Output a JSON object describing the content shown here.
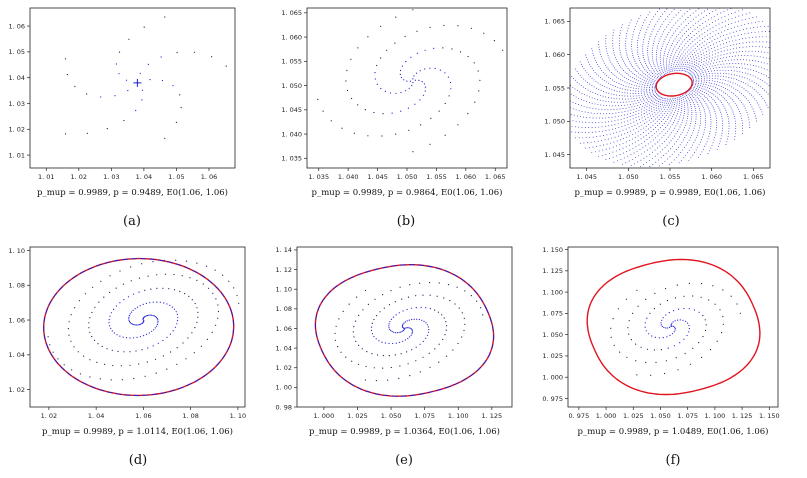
{
  "colors": {
    "blue": "#1f1fd6",
    "red": "#e0141e",
    "dots": "#1a1a55",
    "axis": "#222222"
  },
  "chart_data": [
    {
      "id": "a",
      "type": "scatter",
      "caption": "(a)",
      "xlabel": "p_mup = 0.9989,  p = 0.9489,  E0(1.06, 1.06)",
      "xlim": [
        1.005,
        1.068
      ],
      "ylim": [
        1.005,
        1.067
      ],
      "xticks": [
        1.01,
        1.02,
        1.03,
        1.04,
        1.05,
        1.06
      ],
      "yticks": [
        1.01,
        1.02,
        1.03,
        1.04,
        1.05,
        1.06
      ],
      "tick_labels_x": [
        "1. 01",
        "1. 02",
        "1. 03",
        "1. 04",
        "1. 05",
        "1. 06"
      ],
      "tick_labels_y": [
        "1. 01",
        "1. 02",
        "1. 03",
        "1. 04",
        "1. 05",
        "1. 06"
      ],
      "equilibrium": [
        1.038,
        1.038
      ],
      "dynamics": {
        "kind": "star",
        "rmax": 0.026,
        "arms": 5,
        "turns": 0.25,
        "points": 8
      },
      "limit_cycle": null
    },
    {
      "id": "b",
      "type": "scatter",
      "caption": "(b)",
      "xlabel": "p_mup = 0.9989,  p = 0.9864,  E0(1.06, 1.06)",
      "xlim": [
        1.033,
        1.067
      ],
      "ylim": [
        1.033,
        1.066
      ],
      "xticks": [
        1.035,
        1.04,
        1.045,
        1.05,
        1.055,
        1.06,
        1.065
      ],
      "yticks": [
        1.035,
        1.04,
        1.045,
        1.05,
        1.055,
        1.06,
        1.065
      ],
      "tick_labels_x": [
        "1. 035",
        "1. 040",
        "1. 045",
        "1. 050",
        "1. 055",
        "1. 060",
        "1. 065"
      ],
      "tick_labels_y": [
        "1. 035",
        "1. 040",
        "1. 045",
        "1. 050",
        "1. 055",
        "1. 060",
        "1. 065"
      ],
      "equilibrium": [
        1.051,
        1.051
      ],
      "dynamics": {
        "kind": "spiral",
        "rmax": 0.015,
        "arms": 4,
        "turns": 0.75,
        "points": 26
      },
      "limit_cycle": null
    },
    {
      "id": "c",
      "type": "scatter",
      "caption": "(c)",
      "xlabel": "p_mup = 0.9989,  p = 0.9989,  E0(1.06, 1.06)",
      "xlim": [
        1.043,
        1.067
      ],
      "ylim": [
        1.043,
        1.067
      ],
      "xticks": [
        1.045,
        1.05,
        1.055,
        1.06,
        1.065
      ],
      "yticks": [
        1.045,
        1.05,
        1.055,
        1.06,
        1.065
      ],
      "tick_labels_x": [
        "1. 045",
        "1. 050",
        "1. 055",
        "1. 060",
        "1. 065"
      ],
      "tick_labels_y": [
        "1. 045",
        "1. 050",
        "1. 055",
        "1. 060",
        "1. 065"
      ],
      "equilibrium": [
        1.0555,
        1.0555
      ],
      "dynamics": {
        "kind": "web",
        "rmax": 0.0125,
        "arms": 70,
        "turns": 0.12,
        "points": 34
      },
      "limit_cycle": {
        "cx": 1.0555,
        "cy": 1.0555,
        "rx": 0.0024,
        "ry": 0.0018,
        "tilt": 0.5,
        "color": "red"
      }
    },
    {
      "id": "d",
      "type": "scatter",
      "caption": "(d)",
      "xlabel": "p_mup = 0.9989,  p = 1.0114,  E0(1.06, 1.06)",
      "xlim": [
        1.012,
        1.103
      ],
      "ylim": [
        1.01,
        1.102
      ],
      "xticks": [
        1.02,
        1.04,
        1.06,
        1.08,
        1.1
      ],
      "yticks": [
        1.02,
        1.04,
        1.06,
        1.08,
        1.1
      ],
      "tick_labels_x": [
        "1. 02",
        "1. 04",
        "1. 06",
        "1. 08",
        "1. 10"
      ],
      "tick_labels_y": [
        "1. 02",
        "1. 04",
        "1. 06",
        "1. 08",
        "1. 10"
      ],
      "equilibrium": [
        1.06,
        1.06
      ],
      "dynamics": {
        "kind": "spiral",
        "rmax": 0.038,
        "arms": 2,
        "turns": 2.3,
        "points": 110
      },
      "limit_cycle": {
        "cx": 1.058,
        "cy": 1.056,
        "rx": 0.042,
        "ry": 0.041,
        "tilt": 0.35,
        "color": "red",
        "overlay": "blue"
      }
    },
    {
      "id": "e",
      "type": "scatter",
      "caption": "(e)",
      "xlabel": "p_mup = 0.9989,  p = 1.0364,  E0(1.06, 1.06)",
      "xlim": [
        0.98,
        1.14
      ],
      "ylim": [
        0.98,
        1.143
      ],
      "xticks": [
        1.0,
        1.025,
        1.05,
        1.075,
        1.1,
        1.125
      ],
      "yticks": [
        0.98,
        1.0,
        1.02,
        1.04,
        1.06,
        1.08,
        1.1,
        1.12,
        1.14
      ],
      "tick_labels_x": [
        "1. 000",
        "1. 025",
        "1. 050",
        "1. 075",
        "1. 100",
        "1. 125"
      ],
      "tick_labels_y": [
        "0. 98",
        "1. 00",
        "1. 02",
        "1. 04",
        "1. 06",
        "1. 08",
        "1. 10",
        "1. 12",
        "1. 14"
      ],
      "equilibrium": [
        1.06,
        1.06
      ],
      "dynamics": {
        "kind": "spiral",
        "rmax": 0.055,
        "arms": 3,
        "turns": 1.4,
        "points": 60
      },
      "limit_cycle": {
        "cx": 1.06,
        "cy": 1.058,
        "rx": 0.072,
        "ry": 0.073,
        "tilt": 0.55,
        "color": "red",
        "overlay": "blue",
        "squareness": 0.12
      }
    },
    {
      "id": "f",
      "type": "scatter",
      "caption": "(f)",
      "xlabel": "p_mup = 0.9989,  p = 1.0489,  E0(1.06, 1.06)",
      "xlim": [
        0.965,
        1.158
      ],
      "ylim": [
        0.965,
        1.153
      ],
      "xticks": [
        0.975,
        1.0,
        1.025,
        1.05,
        1.075,
        1.1,
        1.125,
        1.15
      ],
      "yticks": [
        0.975,
        1.0,
        1.025,
        1.05,
        1.075,
        1.1,
        1.125,
        1.15
      ],
      "tick_labels_x": [
        "0. 975",
        "1. 000",
        "1. 025",
        "1. 050",
        "1. 075",
        "1. 100",
        "1. 125",
        "1. 150"
      ],
      "tick_labels_y": [
        "0. 975",
        "1. 000",
        "1. 025",
        "1. 050",
        "1. 075",
        "1. 100",
        "1. 125",
        "1. 150"
      ],
      "equilibrium": [
        1.06,
        1.06
      ],
      "dynamics": {
        "kind": "spiral",
        "rmax": 0.06,
        "arms": 3,
        "turns": 1.3,
        "points": 40
      },
      "limit_cycle": {
        "cx": 1.062,
        "cy": 1.059,
        "rx": 0.086,
        "ry": 0.086,
        "tilt": 0.55,
        "color": "red",
        "squareness": 0.14
      }
    }
  ]
}
